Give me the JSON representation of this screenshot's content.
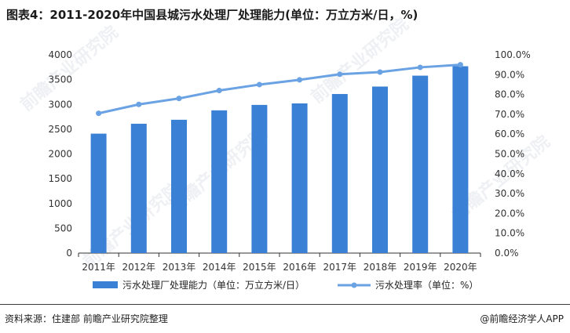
{
  "title": "图表4：2011-2020年中国县城污水处理厂处理能力(单位：万立方米/日，%)",
  "footer": {
    "source": "资料来源：住建部 前瞻产业研究院整理",
    "brand": "@前瞻经济学人APP"
  },
  "watermark": "前瞻产业研究院",
  "colors": {
    "bar": "#3a81d6",
    "line": "#6aa2e3",
    "axis": "#333333"
  },
  "chart_data": {
    "type": "bar",
    "categories": [
      "2011年",
      "2012年",
      "2013年",
      "2014年",
      "2015年",
      "2016年",
      "2017年",
      "2018年",
      "2019年",
      "2020年"
    ],
    "series": [
      {
        "name": "污水处理厂处理能力（单位：万立方米/日）",
        "type": "bar",
        "axis": "left",
        "values": [
          2410,
          2610,
          2690,
          2880,
          2990,
          3020,
          3210,
          3360,
          3580,
          3770
        ]
      },
      {
        "name": "污水处理率（单位：%）",
        "type": "line",
        "axis": "right",
        "values": [
          70.5,
          75.0,
          78.0,
          82.0,
          85.0,
          87.4,
          90.2,
          91.3,
          93.7,
          95.0
        ]
      }
    ],
    "y_left": {
      "ylim": [
        0,
        4000
      ],
      "ticks": [
        "0",
        "500",
        "1000",
        "1500",
        "2000",
        "2500",
        "3000",
        "3500",
        "4000"
      ]
    },
    "y_right": {
      "ylim": [
        0,
        100
      ],
      "ticks": [
        "0.0%",
        "10.0%",
        "20.0%",
        "30.0%",
        "40.0%",
        "50.0%",
        "60.0%",
        "70.0%",
        "80.0%",
        "90.0%",
        "100.0%"
      ]
    },
    "grid": false,
    "legend_position": "bottom"
  }
}
